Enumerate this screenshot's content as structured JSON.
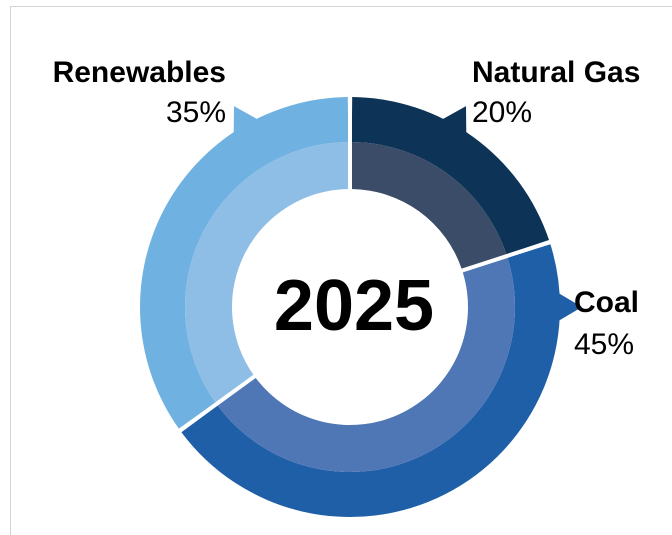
{
  "chart_data": {
    "type": "pie",
    "center_label": "2025",
    "slices": [
      {
        "name": "Natural Gas",
        "value": 20,
        "value_label": "20%",
        "color": "#0d3457",
        "inner_color": "#3a4c68"
      },
      {
        "name": "Coal",
        "value": 45,
        "value_label": "45%",
        "color": "#1f5fa8",
        "inner_color": "#4f77b5"
      },
      {
        "name": "Renewables",
        "value": 35,
        "value_label": "35%",
        "color": "#6fb1e0",
        "inner_color": "#8ebde5"
      }
    ]
  }
}
